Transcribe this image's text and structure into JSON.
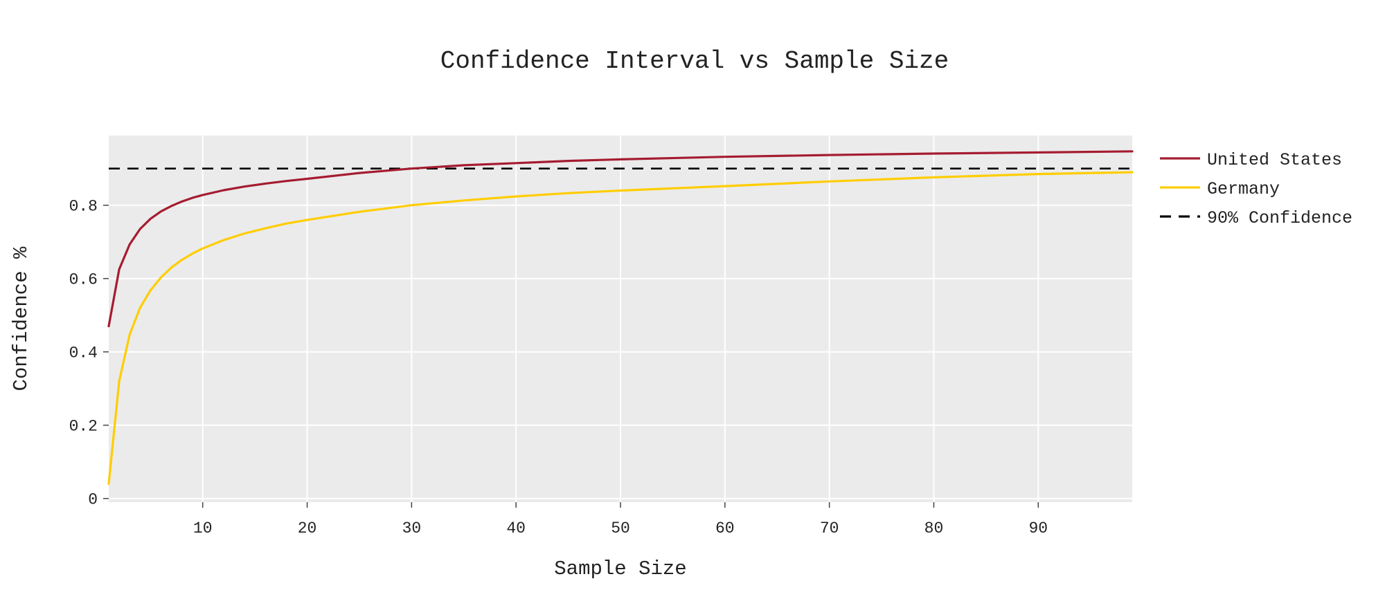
{
  "chart_data": {
    "type": "line",
    "title": "Confidence Interval vs Sample Size",
    "xlabel": "Sample Size",
    "ylabel": "Confidence %",
    "xlim": [
      1,
      99
    ],
    "ylim": [
      -0.01,
      0.99
    ],
    "xticks": [
      10,
      20,
      30,
      40,
      50,
      60,
      70,
      80,
      90
    ],
    "xtick_labels": [
      "10",
      "20",
      "30",
      "40",
      "50",
      "60",
      "70",
      "80",
      "90"
    ],
    "yticks": [
      0,
      0.2,
      0.4,
      0.6,
      0.8
    ],
    "ytick_labels": [
      "0",
      "0.2",
      "0.4",
      "0.6",
      "0.8"
    ],
    "grid": true,
    "legend_position": "right",
    "series": [
      {
        "name": "United States",
        "color": "#a51c30",
        "x": [
          1,
          2,
          3,
          4,
          5,
          6,
          7,
          8,
          9,
          10,
          12,
          14,
          16,
          18,
          20,
          25,
          30,
          35,
          40,
          45,
          50,
          60,
          70,
          80,
          90,
          99
        ],
        "y": [
          0.47,
          0.625,
          0.693,
          0.735,
          0.763,
          0.783,
          0.798,
          0.81,
          0.82,
          0.828,
          0.841,
          0.851,
          0.859,
          0.866,
          0.872,
          0.888,
          0.9,
          0.909,
          0.915,
          0.921,
          0.925,
          0.932,
          0.937,
          0.941,
          0.944,
          0.947
        ]
      },
      {
        "name": "Germany",
        "color": "#ffcd00",
        "x": [
          1,
          2,
          3,
          4,
          5,
          6,
          7,
          8,
          9,
          10,
          12,
          14,
          16,
          18,
          20,
          25,
          30,
          35,
          40,
          45,
          50,
          60,
          70,
          80,
          90,
          99
        ],
        "y": [
          0.04,
          0.32,
          0.447,
          0.52,
          0.568,
          0.603,
          0.63,
          0.651,
          0.668,
          0.682,
          0.705,
          0.723,
          0.737,
          0.75,
          0.76,
          0.782,
          0.8,
          0.813,
          0.824,
          0.833,
          0.84,
          0.852,
          0.865,
          0.876,
          0.885,
          0.89
        ]
      }
    ],
    "reference_line": {
      "name": "90% Confidence",
      "y": 0.9,
      "color": "#000000",
      "style": "dashed"
    }
  }
}
